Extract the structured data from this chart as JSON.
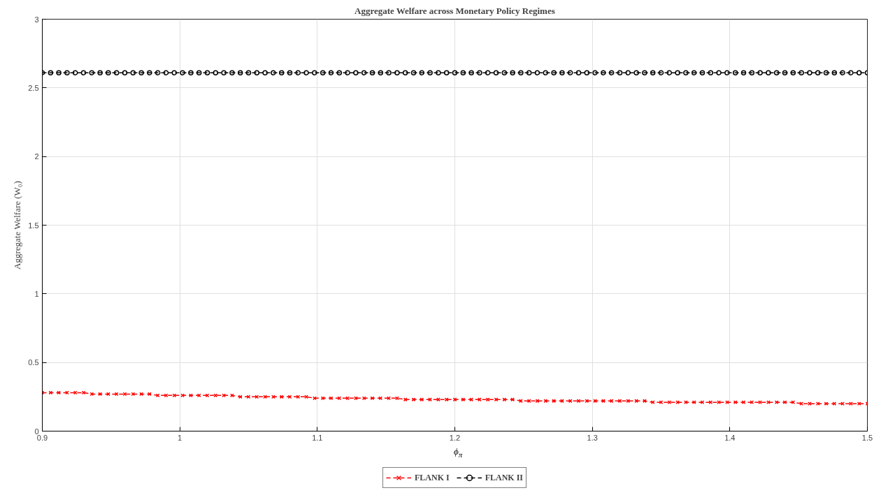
{
  "chart_data": {
    "type": "line",
    "title": "Aggregate Welfare across Monetary Policy Regimes",
    "xlabel": "ϕ$_{π}$",
    "ylabel": "Aggregate Welfare (W₀)",
    "x": [
      0.9,
      0.906,
      0.912,
      0.918,
      0.924,
      0.93,
      0.936,
      0.942,
      0.948,
      0.954,
      0.96,
      0.966,
      0.972,
      0.978,
      0.984,
      0.99,
      0.996,
      1.002,
      1.008,
      1.014,
      1.02,
      1.026,
      1.032,
      1.038,
      1.044,
      1.05,
      1.056,
      1.062,
      1.068,
      1.074,
      1.08,
      1.086,
      1.092,
      1.098,
      1.104,
      1.11,
      1.116,
      1.122,
      1.128,
      1.134,
      1.14,
      1.146,
      1.152,
      1.158,
      1.164,
      1.17,
      1.176,
      1.182,
      1.188,
      1.194,
      1.2,
      1.206,
      1.212,
      1.218,
      1.224,
      1.23,
      1.236,
      1.242,
      1.248,
      1.254,
      1.26,
      1.266,
      1.272,
      1.278,
      1.284,
      1.29,
      1.296,
      1.302,
      1.308,
      1.314,
      1.32,
      1.326,
      1.332,
      1.338,
      1.344,
      1.35,
      1.356,
      1.362,
      1.368,
      1.374,
      1.38,
      1.386,
      1.392,
      1.398,
      1.404,
      1.41,
      1.416,
      1.422,
      1.428,
      1.434,
      1.44,
      1.446,
      1.452,
      1.458,
      1.464,
      1.47,
      1.476,
      1.482,
      1.488,
      1.494,
      1.5
    ],
    "series": [
      {
        "name": "FLANK I",
        "color": "#ff0000",
        "marker": "cross",
        "line_style": "dashed",
        "values": [
          0.28,
          0.28,
          0.28,
          0.28,
          0.28,
          0.28,
          0.27,
          0.27,
          0.27,
          0.27,
          0.27,
          0.27,
          0.27,
          0.27,
          0.26,
          0.26,
          0.26,
          0.26,
          0.26,
          0.26,
          0.26,
          0.26,
          0.26,
          0.26,
          0.25,
          0.25,
          0.25,
          0.25,
          0.25,
          0.25,
          0.25,
          0.25,
          0.25,
          0.24,
          0.24,
          0.24,
          0.24,
          0.24,
          0.24,
          0.24,
          0.24,
          0.24,
          0.24,
          0.24,
          0.23,
          0.23,
          0.23,
          0.23,
          0.23,
          0.23,
          0.23,
          0.23,
          0.23,
          0.23,
          0.23,
          0.23,
          0.23,
          0.23,
          0.22,
          0.22,
          0.22,
          0.22,
          0.22,
          0.22,
          0.22,
          0.22,
          0.22,
          0.22,
          0.22,
          0.22,
          0.22,
          0.22,
          0.22,
          0.22,
          0.21,
          0.21,
          0.21,
          0.21,
          0.21,
          0.21,
          0.21,
          0.21,
          0.21,
          0.21,
          0.21,
          0.21,
          0.21,
          0.21,
          0.21,
          0.21,
          0.21,
          0.21,
          0.2,
          0.2,
          0.2,
          0.2,
          0.2,
          0.2,
          0.2,
          0.2,
          0.2
        ]
      },
      {
        "name": "FLANK II",
        "color": "#000000",
        "marker": "circle",
        "line_style": "dashed",
        "values": [
          2.61,
          2.61,
          2.61,
          2.61,
          2.61,
          2.61,
          2.61,
          2.61,
          2.61,
          2.61,
          2.61,
          2.61,
          2.61,
          2.61,
          2.61,
          2.61,
          2.61,
          2.61,
          2.61,
          2.61,
          2.61,
          2.61,
          2.61,
          2.61,
          2.61,
          2.61,
          2.61,
          2.61,
          2.61,
          2.61,
          2.61,
          2.61,
          2.61,
          2.61,
          2.61,
          2.61,
          2.61,
          2.61,
          2.61,
          2.61,
          2.61,
          2.61,
          2.61,
          2.61,
          2.61,
          2.61,
          2.61,
          2.61,
          2.61,
          2.61,
          2.61,
          2.61,
          2.61,
          2.61,
          2.61,
          2.61,
          2.61,
          2.61,
          2.61,
          2.61,
          2.61,
          2.61,
          2.61,
          2.61,
          2.61,
          2.61,
          2.61,
          2.61,
          2.61,
          2.61,
          2.61,
          2.61,
          2.61,
          2.61,
          2.61,
          2.61,
          2.61,
          2.61,
          2.61,
          2.61,
          2.61,
          2.61,
          2.61,
          2.61,
          2.61,
          2.61,
          2.61,
          2.61,
          2.61,
          2.61,
          2.61,
          2.61,
          2.61,
          2.61,
          2.61,
          2.61,
          2.61,
          2.61,
          2.61,
          2.61,
          2.61
        ]
      }
    ],
    "xlim": [
      0.9,
      1.5
    ],
    "xticks": [
      0.9,
      1,
      1.1,
      1.2,
      1.3,
      1.4,
      1.5
    ],
    "ylim": [
      0,
      3
    ],
    "yticks": [
      0,
      0.5,
      1,
      1.5,
      2,
      2.5,
      3
    ],
    "grid": true,
    "legend": "bottom"
  }
}
